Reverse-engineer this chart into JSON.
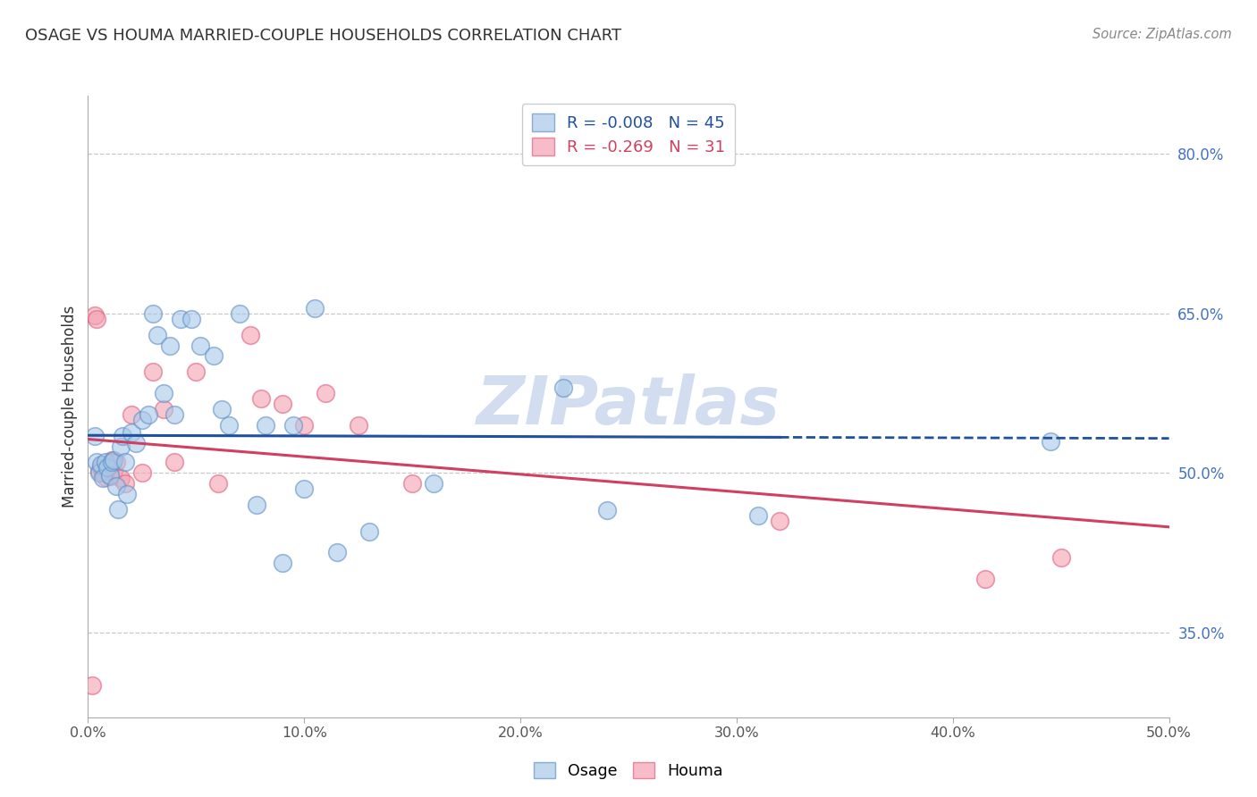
{
  "title": "OSAGE VS HOUMA MARRIED-COUPLE HOUSEHOLDS CORRELATION CHART",
  "source": "Source: ZipAtlas.com",
  "ylabel": "Married-couple Households",
  "xlim": [
    0.0,
    0.5
  ],
  "ylim": [
    0.27,
    0.855
  ],
  "yticks": [
    0.35,
    0.5,
    0.65,
    0.8
  ],
  "ytick_labels": [
    "35.0%",
    "50.0%",
    "65.0%",
    "80.0%"
  ],
  "xticks": [
    0.0,
    0.1,
    0.2,
    0.3,
    0.4,
    0.5
  ],
  "xtick_labels": [
    "0.0%",
    "10.0%",
    "20.0%",
    "30.0%",
    "40.0%",
    "50.0%"
  ],
  "osage_R": -0.008,
  "osage_N": 45,
  "houma_R": -0.269,
  "houma_N": 31,
  "osage_color": "#a8c8e8",
  "houma_color": "#f4a0b0",
  "osage_edge_color": "#6090c8",
  "houma_edge_color": "#e06080",
  "osage_line_color": "#2050a0",
  "houma_line_color": "#d04060",
  "background_color": "#ffffff",
  "watermark": "ZIPatlas",
  "watermark_color": "#ccd8ee",
  "osage_x": [
    0.003,
    0.004,
    0.005,
    0.006,
    0.007,
    0.008,
    0.009,
    0.01,
    0.011,
    0.012,
    0.013,
    0.014,
    0.015,
    0.016,
    0.017,
    0.018,
    0.02,
    0.022,
    0.025,
    0.028,
    0.03,
    0.032,
    0.035,
    0.038,
    0.04,
    0.043,
    0.048,
    0.052,
    0.058,
    0.062,
    0.065,
    0.07,
    0.078,
    0.082,
    0.09,
    0.095,
    0.1,
    0.105,
    0.115,
    0.13,
    0.16,
    0.22,
    0.24,
    0.31,
    0.445
  ],
  "osage_y": [
    0.535,
    0.51,
    0.5,
    0.508,
    0.495,
    0.51,
    0.505,
    0.498,
    0.51,
    0.512,
    0.488,
    0.466,
    0.525,
    0.535,
    0.51,
    0.48,
    0.538,
    0.528,
    0.55,
    0.555,
    0.65,
    0.63,
    0.575,
    0.62,
    0.555,
    0.645,
    0.645,
    0.62,
    0.61,
    0.56,
    0.545,
    0.65,
    0.47,
    0.545,
    0.415,
    0.545,
    0.485,
    0.655,
    0.425,
    0.445,
    0.49,
    0.58,
    0.465,
    0.46,
    0.53
  ],
  "houma_x": [
    0.002,
    0.003,
    0.004,
    0.005,
    0.006,
    0.007,
    0.008,
    0.009,
    0.01,
    0.011,
    0.012,
    0.013,
    0.015,
    0.017,
    0.02,
    0.025,
    0.03,
    0.035,
    0.04,
    0.05,
    0.06,
    0.075,
    0.08,
    0.09,
    0.1,
    0.11,
    0.125,
    0.15,
    0.32,
    0.415,
    0.45
  ],
  "houma_y": [
    0.3,
    0.648,
    0.645,
    0.502,
    0.505,
    0.5,
    0.496,
    0.502,
    0.497,
    0.512,
    0.502,
    0.51,
    0.495,
    0.49,
    0.555,
    0.5,
    0.595,
    0.56,
    0.51,
    0.595,
    0.49,
    0.63,
    0.57,
    0.565,
    0.545,
    0.575,
    0.545,
    0.49,
    0.455,
    0.4,
    0.42
  ]
}
